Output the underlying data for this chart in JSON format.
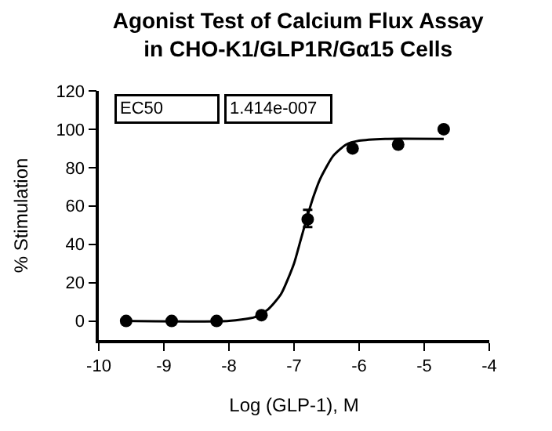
{
  "chart_data": {
    "type": "scatter",
    "title": "Agonist Test of Calcium Flux Assay\nin CHO-K1/GLP1R/Gα15 Cells",
    "xlabel": "Log (GLP-1), M",
    "ylabel": "% Stimulation",
    "x": [
      -9.58,
      -8.88,
      -8.19,
      -7.5,
      -6.79,
      -6.1,
      -5.4,
      -4.7
    ],
    "series": [
      {
        "color": "#000000",
        "marker": "circle",
        "values": [
          0,
          0,
          0,
          3,
          53,
          90,
          92,
          100
        ],
        "errors": [
          null,
          null,
          null,
          null,
          [
            49,
            58
          ],
          null,
          null,
          null
        ]
      },
      {
        "type": "line",
        "color": "#000000",
        "marker": "none",
        "x": [
          -9.6,
          -8.0,
          -7.6,
          -7.4,
          -7.2,
          -7.0,
          -6.9,
          -6.8,
          -6.7,
          -6.6,
          -6.4,
          -6.2,
          -6.0,
          -5.6,
          -4.7
        ],
        "values": [
          0,
          0,
          2,
          6,
          14,
          30,
          42,
          54,
          65,
          74,
          86,
          92,
          94,
          95,
          95
        ]
      }
    ],
    "annotations": [
      "EC50",
      "1.414e-007"
    ],
    "xlim": [
      -10,
      -4
    ],
    "xticks": [
      -10,
      -9,
      -8,
      -7,
      -6,
      -5,
      -4
    ],
    "ylim": [
      -10,
      120
    ],
    "yticks": [
      0,
      20,
      40,
      60,
      80,
      100,
      120
    ]
  }
}
